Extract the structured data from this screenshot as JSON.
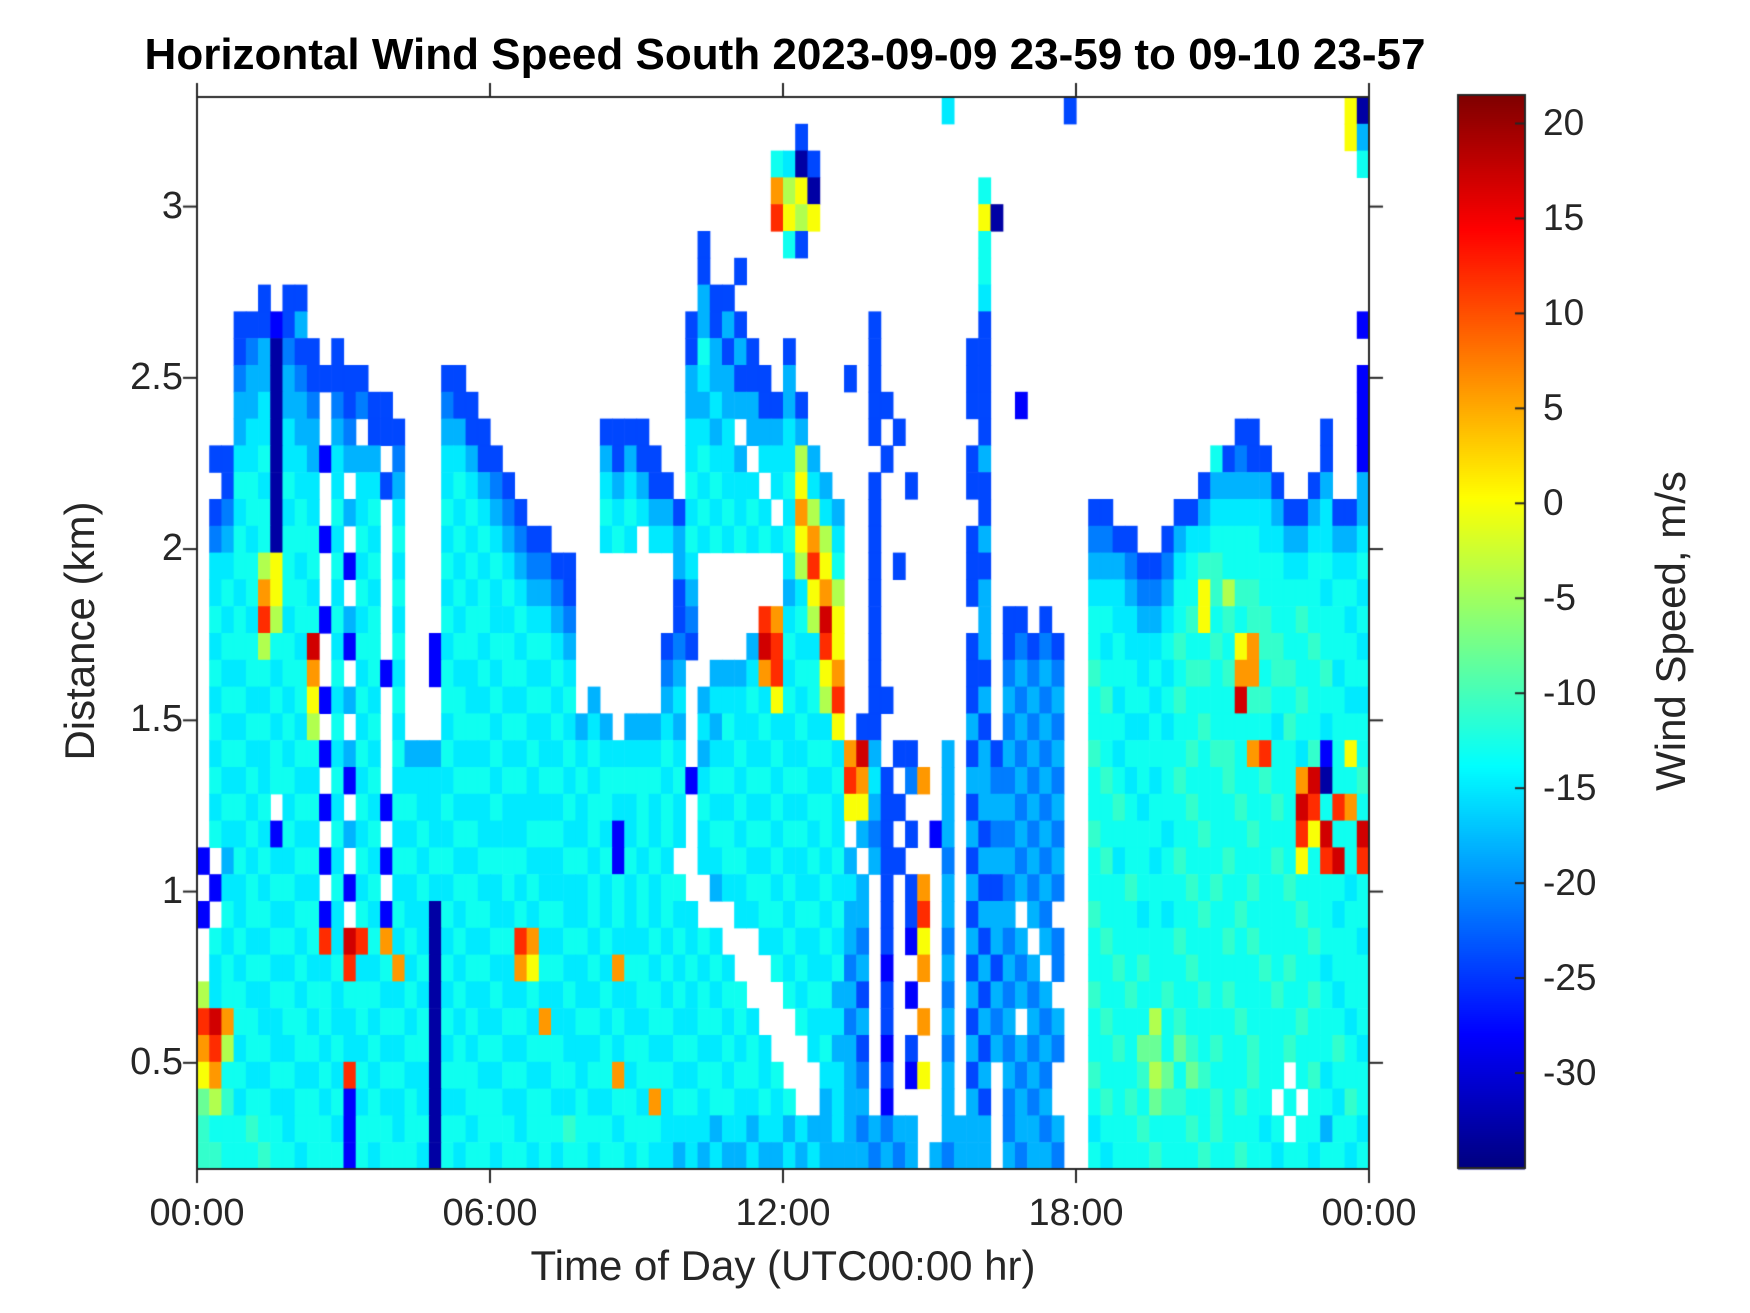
{
  "chart_data": {
    "type": "heatmap",
    "title": "Horizontal Wind Speed South 2023-09-09 23-59 to 09-10 23-57",
    "xlabel": "Time of Day (UTC00:00 hr)",
    "ylabel": "Distance (km)",
    "colorbar_label": "Wind Speed, m/s",
    "colorbar_ticks": [
      20,
      15,
      10,
      5,
      0,
      -5,
      -10,
      -15,
      -20,
      -25,
      -30
    ],
    "colormap": "jet",
    "color_domain": [
      -35,
      21.5
    ],
    "x_tick_labels": [
      "00:00",
      "06:00",
      "12:00",
      "18:00",
      "00:00"
    ],
    "x_tick_hours": [
      0,
      6,
      12,
      18,
      24
    ],
    "y_tick_values": [
      3,
      2.5,
      2,
      1.5,
      1,
      0.5
    ],
    "x_range_hours": [
      0,
      24
    ],
    "y_range_km": [
      0.19,
      3.32
    ],
    "grid_on": false,
    "no_data_color": "#ffffff",
    "grid": {
      "cols": 96,
      "rows": 40,
      "note": "each char = one cell, 15 min wide, ~0.078 km tall, top row = 3.32 km; '.' = no data",
      "value_key": {
        "a": -33,
        "b": -28,
        "c": -24,
        "d": -21,
        "e": -18,
        "f": -15,
        "g": -13,
        "h": -11,
        "i": -8,
        "j": -4,
        "k": 0,
        "l": 6,
        "m": 12,
        "n": 17
      },
      "row_groups": [
        [
          "........",
          "........",
          "........",
          "........",
          "........",
          "........",
          "........",
          ".....f..",
          ".......c",
          "........",
          "........",
          "......ka"
        ],
        [
          "........",
          "........",
          "........",
          "........",
          "........",
          "........",
          ".c......",
          "........",
          "........",
          "........",
          "........",
          "......ke"
        ],
        [
          "........",
          "........",
          "........",
          "........",
          "........",
          ".......g",
          "fac.....",
          "........",
          "........",
          "........",
          "........",
          ".......g"
        ],
        [
          "........",
          "........",
          "........",
          "........",
          "........",
          ".......l",
          "jka.....",
          "........",
          "g.......",
          "........",
          "........",
          "........"
        ],
        [
          "........",
          "........",
          "........",
          "........",
          "........",
          ".......m",
          "kjk.....",
          "........",
          "ka......",
          "........",
          "........",
          "........"
        ],
        [
          "........",
          "........",
          "........",
          "........",
          "........",
          ".c......",
          "gc......",
          "........",
          "g.......",
          "........",
          "........",
          "........"
        ],
        [
          "........",
          "........",
          "........",
          "........",
          "........",
          ".c..c...",
          "........",
          "........",
          "g.......",
          "........",
          "........",
          "........"
        ],
        [
          ".....c.c",
          "c.......",
          "........",
          "........",
          "........",
          ".ecc....",
          "........",
          "........",
          "f.......",
          "........",
          "........",
          "........"
        ],
        [
          "...cccbc",
          "e.......",
          "........",
          "........",
          "........",
          "cecec...",
          ".......c",
          "........",
          "c.......",
          "........",
          "........",
          ".......b"
        ],
        [
          "...cdead",
          "cc.c....",
          "........",
          "........",
          "........",
          "cgecec..",
          "c......c",
          ".......c",
          "c.......",
          "........",
          "........",
          "........"
        ],
        [
          "...deeae",
          "dccccc..",
          "....cc..",
          "........",
          "........",
          "efeeccc.",
          "e....c.c",
          ".......c",
          "c.......",
          "........",
          "........",
          ".......b"
        ],
        [
          "...eefae",
          "ed.dcdcc",
          "....dcc.",
          "........",
          "........",
          "eefeeecc",
          "ec.....c",
          "c......c",
          "c..b....",
          "........",
          "........",
          ".......b"
        ],
        [
          "...effaf",
          "ee.ed.cc",
          "c...eecc",
          "........",
          ".cccc...",
          "ffef.eee",
          "fe.....c",
          ".c......",
          "c.......",
          "........",
          ".....cc.",
          "....c..b"
        ],
        [
          ".ccffgaf",
          "febfeee.",
          "d...ffec",
          "c.......",
          ".ececc..",
          "fgffe.ff",
          "fje.....",
          "c......c",
          "e.......",
          "........",
          "...gcdcc",
          "....c..b"
        ],
        [
          "..cggfag",
          "ff.f.ffc",
          "e...fgfe",
          "dc......",
          ".fefecc.",
          "gfgfff.f",
          "gkfe...c",
          "..c....c",
          "c.......",
          "........",
          "..ceeeee",
          "c..ce..e"
        ],
        [
          ".cdfggaf",
          "gf.gefg.",
          "f...gfgf",
          "edc.....",
          ".gfgfeec",
          "fgfgfgf.",
          "fljfe..c",
          "........",
          "c.......",
          ".cc.....",
          "ccefffff",
          "eccefcce"
        ],
        [
          ".degfgag",
          "ggbf.gf.",
          "g...fgfg",
          "fedcc...",
          ".fgf.ffe",
          "gfgfgfgf",
          "gkljf..c",
          ".......c",
          "e.......",
          ".ddcc..c",
          "effggggf",
          "feeffeef"
        ],
        [
          ".ffggjkg",
          "fg.gbfg.",
          "f...gfgf",
          "gfeddcc.",
          ".......e",
          "f.......",
          "fjmkg..c",
          ".c.....c",
          "c.......",
          ".eeedccd",
          "fghhgggg",
          "gffggffg"
        ],
        [
          ".fgfglkg",
          "gf.f.gf.",
          "g...fgfg",
          "fgfeedc.",
          ".......c",
          "e.......",
          "efklj..c",
          ".......c",
          "e.......",
          ".fffedde",
          "ggkhjhhg",
          "ggggfggf"
        ],
        [
          ".gfgfmjf",
          "ggbgefg.",
          "f...gfgg",
          "ffgffed.",
          ".......c",
          "d.....ml",
          "fgjnk..c",
          "........",
          "e.cc.c..",
          ".ggffeef",
          "ghkghghh",
          "gghgggfg"
        ],
        [
          ".fgggjgg",
          "fn.fbgg.",
          "g..bfggf",
          "ggfggfe.",
          "......cd",
          "c....enm",
          "gffmk..c",
          ".......c",
          "e.cdcdc.",
          ".gfgfffg",
          "hgghgklh",
          "hgghgggf"
        ],
        [
          ".gffggfg",
          "gl.g.fgb",
          "f..bgffg",
          "fggffgf.",
          "......de",
          "..eeeflm",
          "fggkl..c",
          ".......c",
          "c.deded.",
          ".hgggfgf",
          "ghhghllg",
          "hhgghfgg"
        ],
        [
          ".fggffgf",
          "gkbfegf.",
          "g...ggff",
          "gffggfg.",
          "e.....ef",
          ".efffgfk",
          "gfgjm..c",
          "c......c",
          "e.edede.",
          ".ghfggfg",
          "hggggnhh",
          "gghgggff"
        ],
        [
          ".gffggfg",
          "fj.g.fg.",
          "f...fggg",
          "fggffgfe",
          "fe.eeefe",
          ".fegffgf",
          "fgffk.cc",
          ".......e",
          "c.deded.",
          ".gggffgf",
          "gghggggg",
          "fhggfggg"
        ],
        [
          ".fggffgf",
          "ggbfegf.",
          "geeegfff",
          "gffgffgf",
          "gfffffgf",
          ".effgffg",
          "ffggflne",
          ".cc..e.c",
          "ecedede.",
          ".hgfgggg",
          "ghghhglm",
          "ggfhbgkg"
        ],
        [
          ".gffgfgg",
          "ff.gbfg.",
          "fffffggg",
          "fggfggfg",
          "fgggggfg",
          "bfggfggf",
          "ggffgmlf",
          "c.dl.e.e",
          "eddeded.",
          ".ghgfgfg",
          "hggghggh",
          "gglnaggh"
        ],
        [
          ".fggfg.f",
          "ggbf.gfb",
          "ggffgfff",
          "gfffffgf",
          "ggffgfgf",
          ".gffgffg",
          "ffggfkke",
          "cc...e.c",
          "eeedede.",
          ".gghgfgg",
          "ghggghgg",
          "hgnmgmlg"
        ],
        [
          ".gffgfbg",
          "ff.gefg.",
          "ffgffggf",
          "fffgggff",
          "gfbfgfgf",
          ".fggfggf",
          "ggfgf.ed",
          "c.c.be.e",
          "cddeded.",
          ".hgggggf",
          "gghggghg",
          "ggmknggn"
        ],
        [
          "b.egfgff",
          "ggbf.gfb",
          "ggfggffg",
          "gggfffgg",
          "fgbgfgf.",
          ".ffggffg",
          "ffgfge.e",
          "cc...d.c",
          "eeedede.",
          ".ghfggfg",
          "hggghggg",
          "hgkgmngm"
        ],
        [
          ".bffgfgg",
          "ff.gbfg.",
          "ffgffggf",
          "fgfgffff",
          "gfgfgfgg",
          "..effggf",
          "gffgffe.",
          "c.cl.e.e",
          "ccdeded.",
          ".ggghggg",
          "ghghgghg",
          "ghggggfg"
        ],
        [
          "b.gfggff",
          "ggbf.gfb",
          "gffagfgg",
          "ffgfggff",
          "gfgfgfgf",
          "f...ffgg",
          "fggfgee.",
          "c.cm.e.c",
          "eee.ed..",
          ".hgggfgf",
          "gghgghgg",
          "gghggfgg"
        ],
        [
          ".gfgffgg",
          "fgmfnmgl",
          "fgfafgff",
          "ggmlffgg",
          "fgfffgfg",
          "fgf...ff",
          "gffgfed.",
          "c.bk.d.e",
          "cede.ed.",
          ".ghggggg",
          "hggghghg",
          "ggghgggf"
        ],
        [
          ".fgfggff",
          "gffgmffg",
          "lfgagfgg",
          "fflkggff",
          "gflggfgf",
          "gfgf...g",
          "fgffgde.",
          "b..l.e.c",
          "ecede.d.",
          ".gghghgg",
          "ghgggggh",
          "ghggfggg"
        ],
        [
          "jfggffgg",
          "fggfgggf",
          "fgfafgff",
          "gffgffgf",
          "fgffggfg",
          "fgfgg...",
          "gfggeec.",
          "c.b..d.e",
          "cedede..",
          ".hgghggh",
          "gghghggg",
          "hgghgfgg"
        ],
        [
          "mnlggffg",
          "gfgffgfg",
          "gfgagfgf",
          "fggflffg",
          "gfgffggf",
          "fggfgf..",
          ".gfffde.",
          "c..l.e.c",
          "ede.ede.",
          ".ghgggjg",
          "hgggghgg",
          "gghgggfg"
        ],
        [
          "lmjfggff",
          "ggfgffgf",
          "fggafgfg",
          "gffgggff",
          "fgfggffg",
          "gffgfgf.",
          "..fgeec.",
          "b.c..d.e",
          "cededed.",
          ".gghgiig",
          "ihghgghg",
          "ghggghgf"
        ],
        [
          "klggffgg",
          "ffgfmgfg",
          "gffagggf",
          "fggffggf",
          "gglfgggf",
          "fggfggfg",
          "...ffed.",
          "c.bk.e.c",
          "e.eded..",
          ".hggghji",
          "gihggghg",
          "g.ghfggg"
        ],
        [
          "ijhfggff",
          "ggfgbfgf",
          "fgfaffgg",
          "gffggffg",
          "ffggflfg",
          "gfggffgf",
          "g..efee.",
          "b....e.e",
          "c.dede..",
          ".ghghgih",
          "hgghghgg",
          ".g.ggfhg"
        ],
        [
          "hggghggf",
          "gggfbggg",
          "fggaggfg",
          "ggfggghg",
          "ggfgggff",
          "ffeffeff",
          "efeefede",
          "dee..eee",
          "e.deede.",
          ".fggghgg",
          "ghghgggf",
          "g.ggeggf"
        ],
        [
          "hhggghgg",
          "fgggbgfg",
          "ggfagfgg",
          "fggfgfgg",
          "fggfgffe",
          "fefeefee",
          "fefeeeed",
          "ede.edee",
          "e.edeed.",
          ".gfggghg",
          "gghgghgg",
          "fggfggfg"
        ]
      ]
    }
  }
}
